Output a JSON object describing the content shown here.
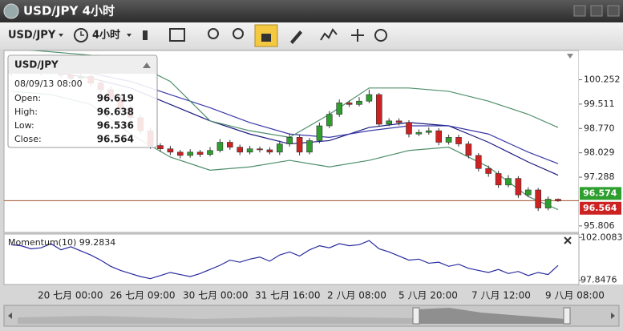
{
  "window": {
    "title": "USD/JPY 4小时"
  },
  "toolbar": {
    "symbol": "USD/JPY",
    "timeframe": "4小时"
  },
  "chart": {
    "type": "candlestick",
    "ylim": [
      95.608,
      101.141
    ],
    "yticks": [
      100.252,
      99.511,
      {
        "value": 98.77,
        "label": "98.770"
      },
      98.029,
      97.288,
      95.806
    ],
    "open": [
      100.45,
      100.55,
      100.7,
      100.62,
      100.45,
      100.5,
      100.4,
      100.3,
      100.35,
      100.15,
      99.95,
      99.7,
      99.4,
      99.1,
      98.7,
      98.25,
      98.15,
      98.05,
      97.95,
      98.05,
      97.98,
      98.1,
      98.35,
      98.2,
      98.05,
      98.15,
      98.12,
      98.05,
      98.3,
      98.5,
      98.05,
      98.4,
      98.85,
      99.2,
      99.55,
      99.5,
      99.6,
      99.8,
      98.9,
      99.0,
      98.95,
      98.6,
      98.65,
      98.7,
      98.35,
      98.5,
      98.3,
      97.95,
      97.55,
      97.4,
      97.05,
      97.25,
      96.75,
      96.9,
      96.35,
      96.619
    ],
    "high": [
      100.65,
      100.8,
      100.78,
      100.7,
      100.58,
      100.6,
      100.48,
      100.45,
      100.42,
      100.25,
      100.05,
      99.8,
      99.5,
      99.18,
      98.8,
      98.32,
      98.24,
      98.12,
      98.14,
      98.12,
      98.2,
      98.45,
      98.42,
      98.28,
      98.24,
      98.22,
      98.2,
      98.4,
      98.62,
      98.58,
      98.48,
      98.95,
      99.3,
      99.65,
      99.62,
      99.72,
      99.95,
      99.85,
      99.08,
      99.08,
      99.02,
      98.74,
      98.8,
      98.78,
      98.58,
      98.58,
      98.38,
      98.02,
      97.64,
      97.48,
      97.35,
      97.32,
      96.98,
      96.96,
      96.7,
      96.638
    ],
    "low": [
      100.36,
      100.48,
      100.55,
      100.38,
      100.4,
      100.32,
      100.22,
      100.24,
      100.06,
      99.86,
      99.62,
      99.3,
      99.0,
      98.6,
      98.15,
      98.06,
      97.96,
      97.86,
      97.88,
      97.9,
      97.92,
      98.04,
      98.12,
      97.96,
      97.98,
      98.04,
      97.98,
      97.96,
      98.22,
      97.95,
      97.98,
      98.32,
      98.78,
      99.12,
      99.42,
      99.44,
      99.54,
      98.82,
      98.84,
      98.86,
      98.5,
      98.54,
      98.58,
      98.26,
      98.28,
      98.22,
      97.86,
      97.46,
      97.3,
      96.96,
      96.98,
      96.66,
      96.68,
      96.26,
      96.28,
      96.536
    ],
    "close": [
      100.55,
      100.7,
      100.62,
      100.45,
      100.5,
      100.4,
      100.3,
      100.35,
      100.15,
      99.95,
      99.7,
      99.4,
      99.1,
      98.7,
      98.25,
      98.15,
      98.05,
      97.95,
      98.05,
      97.98,
      98.1,
      98.35,
      98.2,
      98.05,
      98.15,
      98.12,
      98.05,
      98.3,
      98.5,
      98.05,
      98.4,
      98.85,
      99.2,
      99.55,
      99.5,
      99.6,
      99.8,
      98.9,
      99.0,
      98.95,
      98.6,
      98.65,
      98.7,
      98.35,
      98.5,
      98.3,
      97.95,
      97.55,
      97.4,
      97.05,
      97.25,
      96.75,
      96.9,
      96.35,
      96.619,
      96.564
    ],
    "up_color": "#2e9e2e",
    "down_color": "#cc2222",
    "lines": [
      {
        "color": "#1a1a80",
        "x": [
          0,
          4,
          8,
          12,
          16,
          20,
          24,
          28,
          32,
          36,
          40,
          44,
          48,
          52,
          55
        ],
        "values": [
          100.6,
          100.5,
          100.3,
          100.0,
          99.5,
          99.0,
          98.6,
          98.3,
          98.4,
          98.8,
          98.95,
          98.85,
          98.35,
          97.75,
          97.35
        ]
      },
      {
        "color": "#3a3aa8",
        "x": [
          0,
          4,
          8,
          12,
          16,
          20,
          24,
          28,
          32,
          36,
          40,
          44,
          48,
          52,
          55
        ],
        "values": [
          100.7,
          100.6,
          100.45,
          100.2,
          99.8,
          99.4,
          98.95,
          98.6,
          98.5,
          98.7,
          98.85,
          98.85,
          98.6,
          98.05,
          97.7
        ]
      },
      {
        "color": "#4f8f6a",
        "x": [
          0,
          4,
          8,
          12,
          16,
          20,
          24,
          28,
          32,
          36,
          40,
          44,
          48,
          52,
          55
        ],
        "values": [
          101.2,
          101.1,
          101.0,
          100.8,
          100.2,
          99.0,
          98.7,
          98.5,
          99.2,
          100.0,
          100.0,
          99.9,
          99.6,
          99.2,
          98.8
        ]
      },
      {
        "color": "#4f8f6a",
        "x": [
          0,
          4,
          8,
          12,
          16,
          20,
          24,
          28,
          32,
          36,
          40,
          44,
          48,
          52,
          55
        ],
        "values": [
          99.9,
          99.8,
          99.5,
          98.6,
          97.9,
          97.5,
          97.6,
          97.8,
          97.6,
          97.8,
          98.1,
          98.2,
          97.6,
          96.7,
          96.3
        ]
      }
    ],
    "price_tags": [
      {
        "value": 96.574,
        "color": "#2e9e2e"
      },
      {
        "value": 96.564,
        "color": "#cc2222"
      }
    ],
    "price_line_color": "#a0522d",
    "info": {
      "title": "USD/JPY",
      "date": "08/09/13 08:00",
      "rows": [
        [
          "Open:",
          96.619
        ],
        [
          "High:",
          96.638
        ],
        [
          "Low:",
          96.536
        ],
        [
          "Close:",
          96.564
        ]
      ]
    }
  },
  "momentum": {
    "label": "Momentum(10) 99.2834",
    "color": "#2a2aa0",
    "ylim": [
      97.43,
      102.34
    ],
    "yticks": [
      102.0083,
      97.8476
    ],
    "values": [
      101.3,
      101.2,
      100.9,
      101.0,
      101.4,
      100.8,
      101.1,
      100.7,
      100.3,
      99.8,
      99.2,
      98.8,
      98.5,
      98.2,
      98.0,
      98.3,
      98.6,
      98.4,
      98.2,
      98.5,
      98.9,
      99.3,
      99.8,
      99.6,
      99.9,
      100.1,
      99.7,
      100.3,
      100.6,
      100.2,
      100.8,
      101.2,
      101.0,
      101.4,
      101.2,
      101.3,
      101.7,
      100.9,
      100.6,
      100.2,
      99.8,
      99.9,
      99.5,
      99.6,
      99.2,
      99.4,
      99.0,
      98.8,
      98.6,
      98.9,
      98.5,
      98.7,
      98.3,
      98.6,
      98.4,
      99.2834
    ]
  },
  "time_axis": [
    "20 七月 00:00",
    "26 七月 09:00",
    "30 七月 00:00",
    "31 七月 16:00",
    "2 八月 08:00",
    "5 八月 20:00",
    "7 八月 12:00",
    "9 八月 08:00"
  ]
}
